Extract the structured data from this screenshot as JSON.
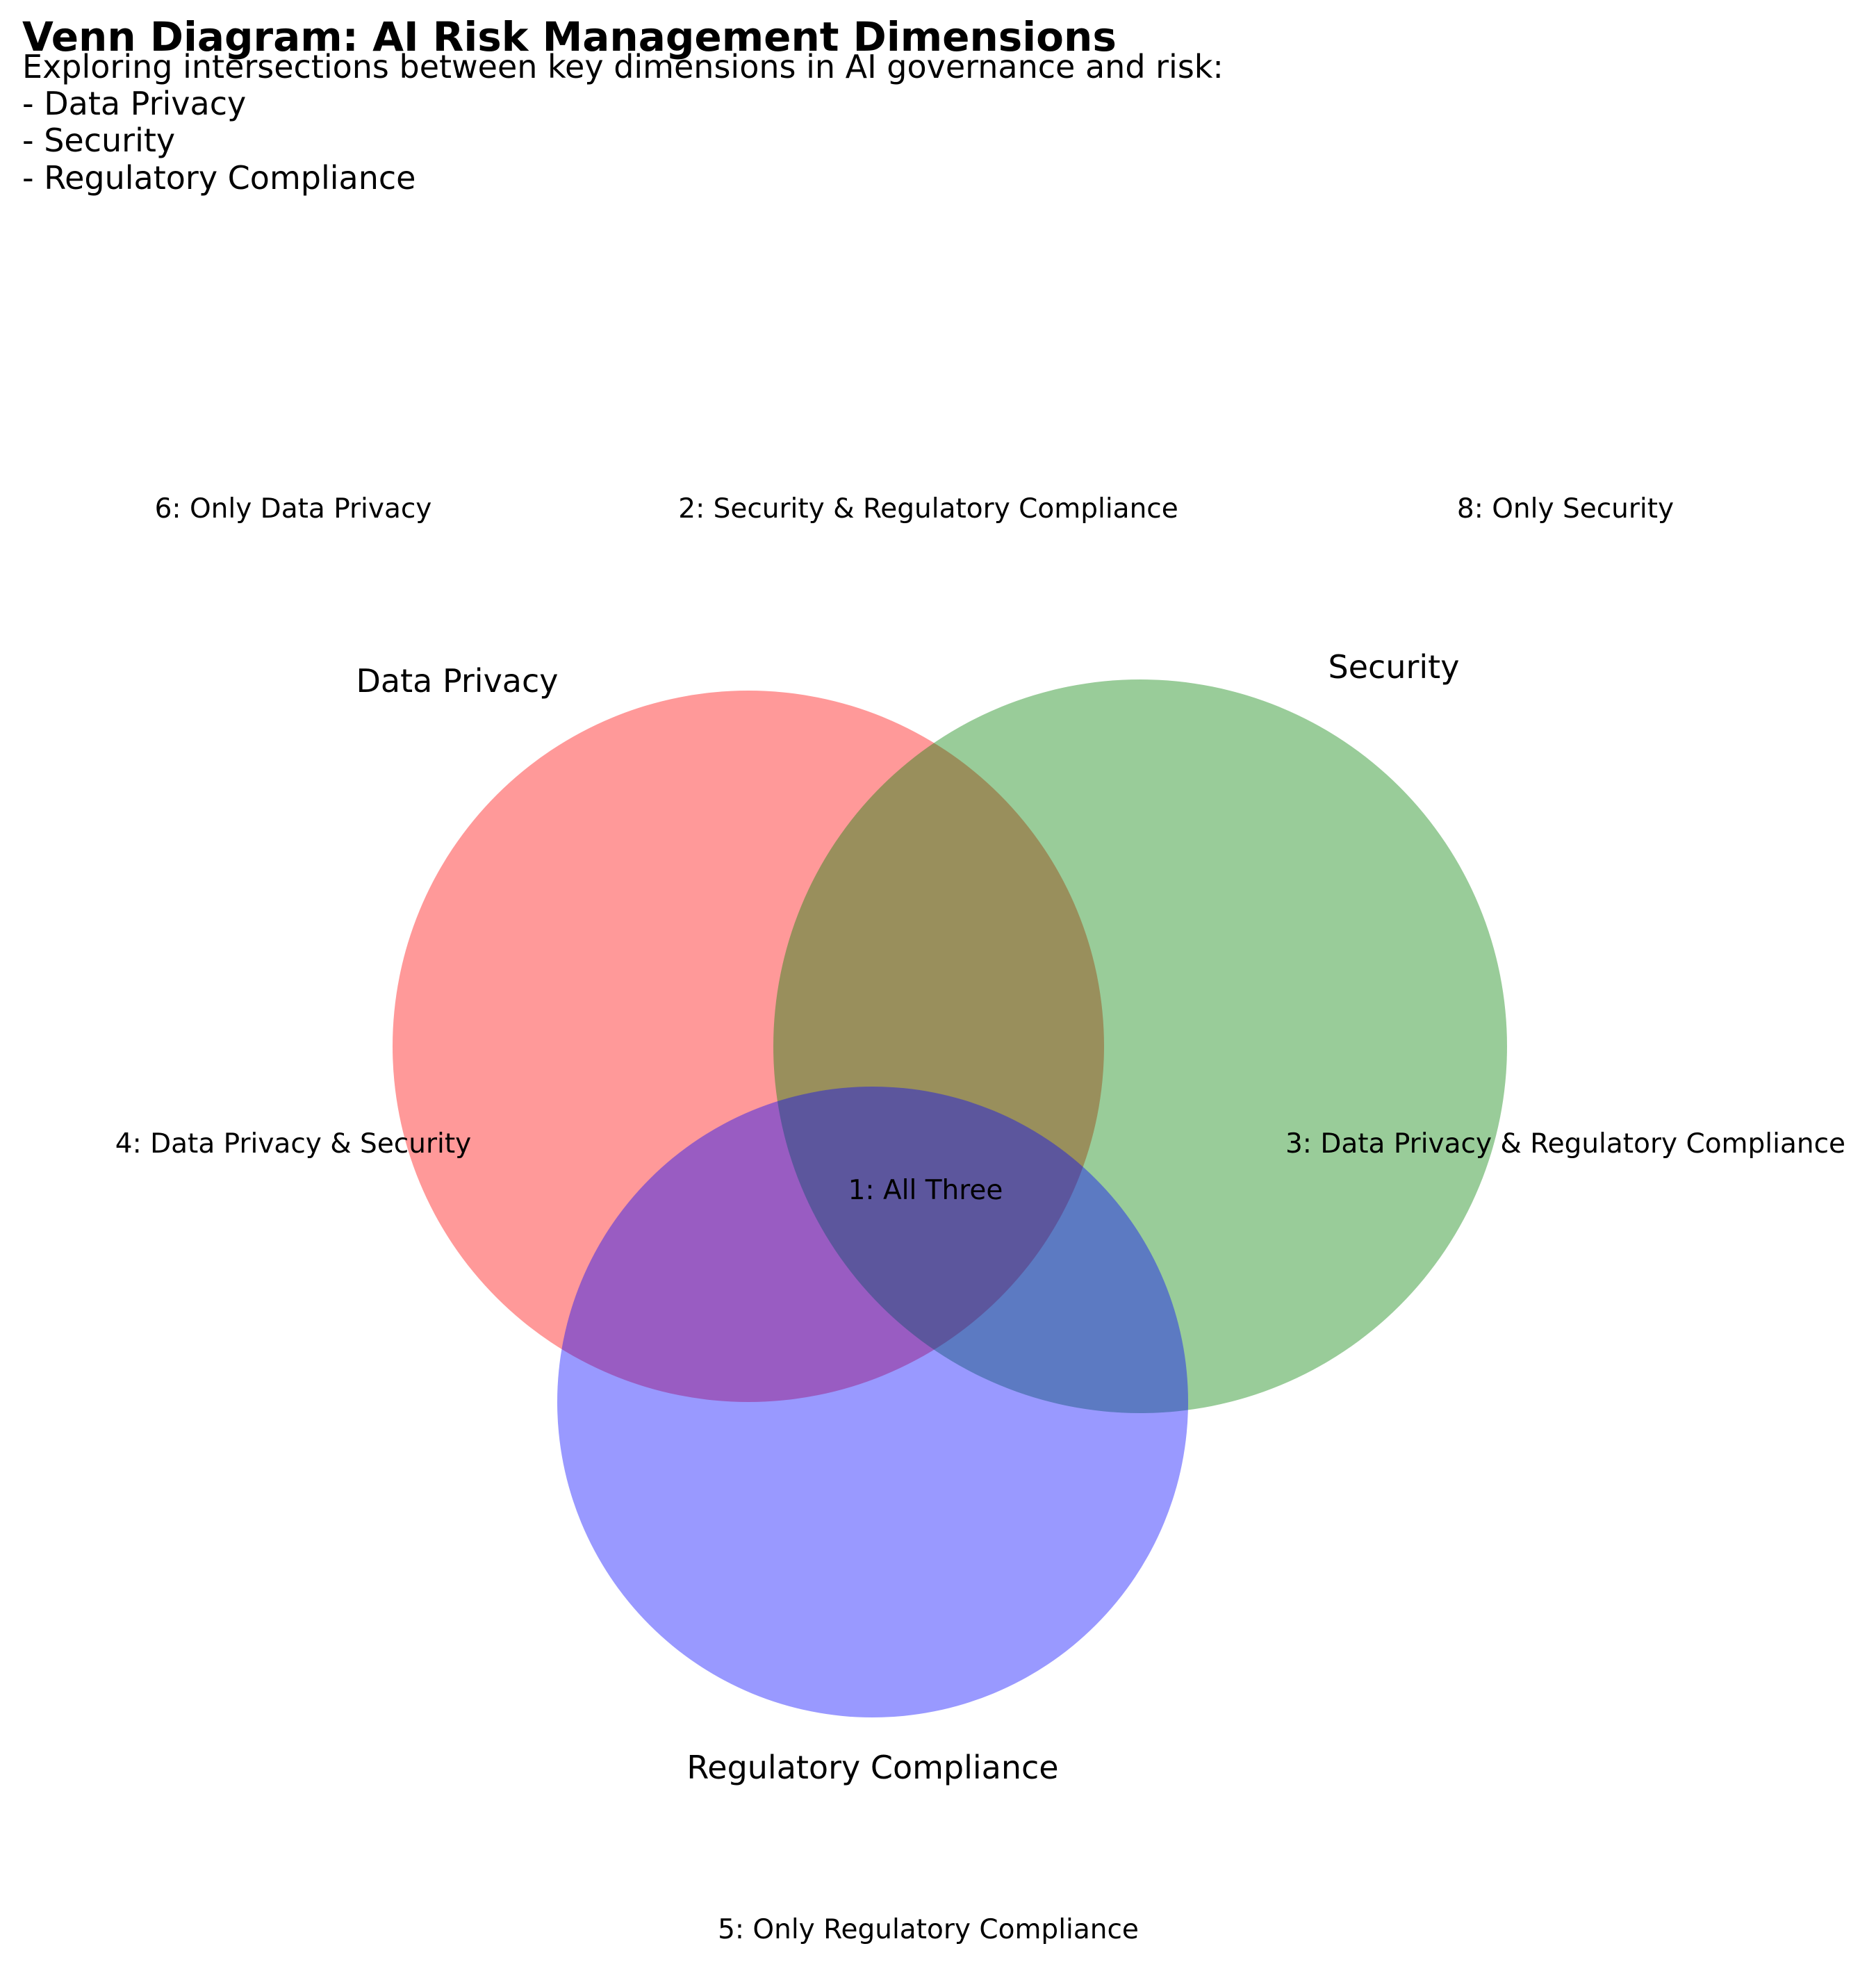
{
  "title": "Venn Diagram: AI Risk Management Dimensions",
  "subtitle_lines": [
    "Exploring intersections between key dimensions in AI governance and risk:",
    "- Data Privacy",
    "- Security",
    "- Regulatory Compliance"
  ],
  "colors": {
    "data_privacy": "#ff0000",
    "security": "#008000",
    "regulatory_compliance": "#0000ff",
    "text": "#000000",
    "background": "#ffffff"
  },
  "sets": {
    "data_privacy": {
      "label": "Data Privacy"
    },
    "security": {
      "label": "Security"
    },
    "regulatory_compliance": {
      "label": "Regulatory Compliance"
    }
  },
  "regions": {
    "all_three": "1: All Three",
    "security_regulatory": "2: Security & Regulatory Compliance",
    "privacy_regulatory": "3: Data Privacy & Regulatory Compliance",
    "privacy_security": "4: Data Privacy & Security",
    "only_regulatory": "5: Only Regulatory Compliance",
    "only_privacy": "6: Only Data Privacy",
    "only_security": "8: Only Security"
  }
}
